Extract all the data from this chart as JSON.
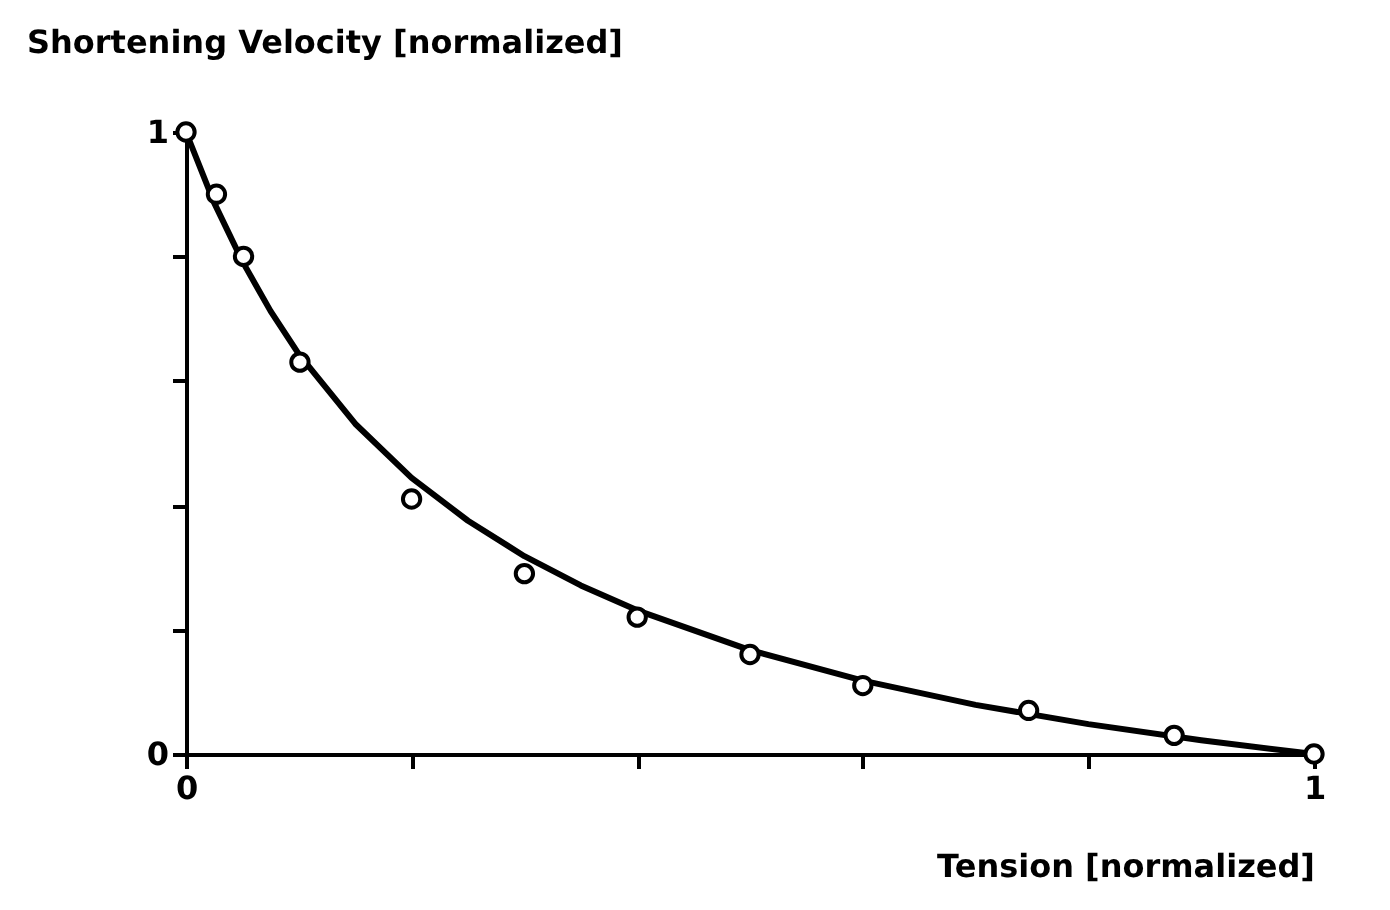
{
  "chart_data": {
    "type": "scatter",
    "xlabel": "Tension [normalized]",
    "ylabel": "Shortening Velocity [normalized]",
    "xlim": [
      0,
      1
    ],
    "ylim": [
      0,
      1
    ],
    "xticks": [
      0,
      {
        "value": 0.2,
        "label": null
      },
      {
        "value": 0.4,
        "label": null
      },
      {
        "value": 0.6,
        "label": null
      },
      {
        "value": 0.8,
        "label": null
      },
      1
    ],
    "yticks": [
      0,
      {
        "value": 0.2,
        "label": null
      },
      {
        "value": 0.4,
        "label": null
      },
      {
        "value": 0.6,
        "label": null
      },
      {
        "value": 0.8,
        "label": null
      },
      1
    ],
    "grid": false,
    "series": [
      {
        "type": "line",
        "color": "#000000",
        "x": [
          0,
          0.025,
          0.05,
          0.075,
          0.1,
          0.15,
          0.2,
          0.25,
          0.3,
          0.35,
          0.4,
          0.5,
          0.6,
          0.7,
          0.8,
          0.9,
          1
        ],
        "values": [
          1,
          0.886,
          0.792,
          0.712,
          0.643,
          0.531,
          0.444,
          0.375,
          0.318,
          0.271,
          0.231,
          0.167,
          0.118,
          0.079,
          0.048,
          0.022,
          0
        ]
      },
      {
        "color": "#000000",
        "marker": "circle",
        "x": [
          0,
          0.027,
          0.051,
          0.101,
          0.2,
          0.3,
          0.4,
          0.5,
          0.6,
          0.747,
          0.876,
          1
        ],
        "values": [
          1,
          0.9,
          0.8,
          0.63,
          0.41,
          0.29,
          0.22,
          0.16,
          0.11,
          0.07,
          0.03,
          0
        ]
      }
    ]
  }
}
